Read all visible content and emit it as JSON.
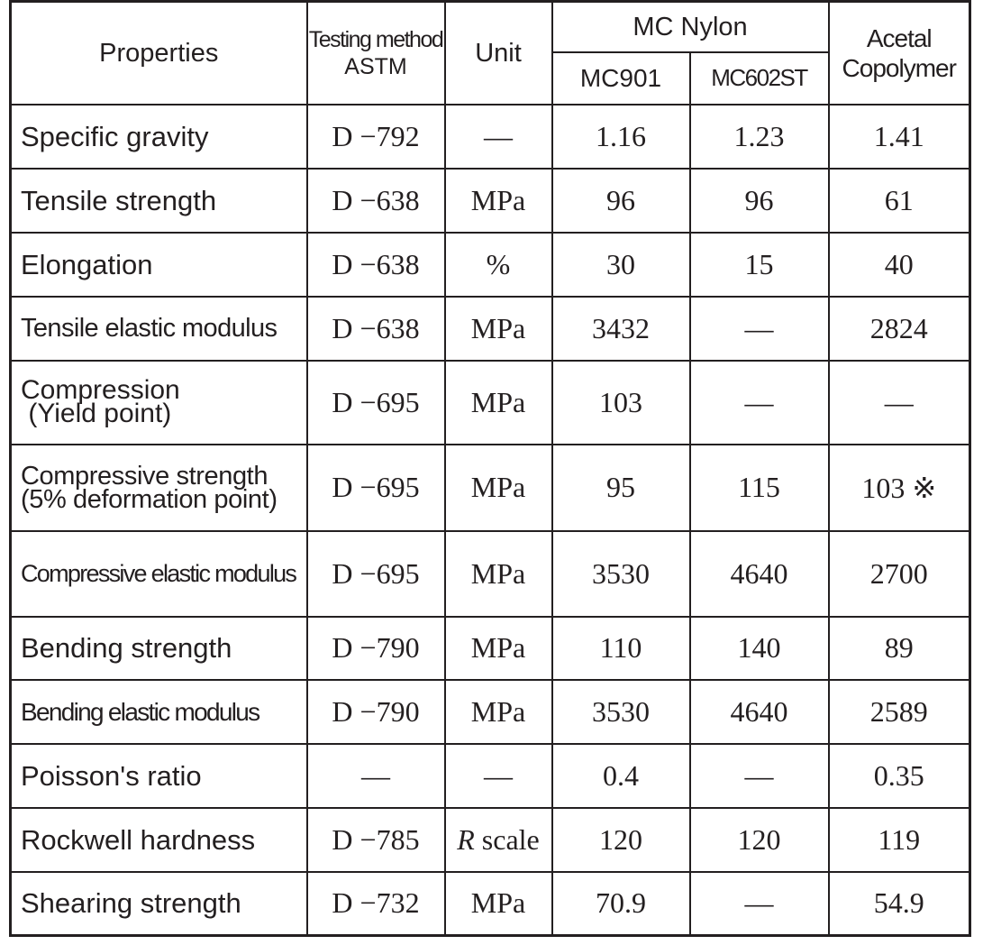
{
  "header": {
    "properties": "Properties",
    "testing_method_line1": "Testing method",
    "testing_method_line2": "ASTM",
    "unit": "Unit",
    "mc_nylon": "MC Nylon",
    "mc901": "MC901",
    "mc602st": "MC602ST",
    "acetal_line1": "Acetal",
    "acetal_line2": "Copolymer"
  },
  "rows": [
    {
      "prop": "Specific gravity",
      "method": "D −792",
      "unit": "—",
      "mc901": "1.16",
      "mc602st": "1.23",
      "acetal": "1.41"
    },
    {
      "prop": "Tensile strength",
      "method": "D −638",
      "unit": "MPa",
      "mc901": "96",
      "mc602st": "96",
      "acetal": "61"
    },
    {
      "prop": "Elongation",
      "method": "D −638",
      "unit": "%",
      "mc901": "30",
      "mc602st": "15",
      "acetal": "40"
    },
    {
      "prop": "Tensile elastic modulus",
      "method": "D −638",
      "unit": "MPa",
      "mc901": "3432",
      "mc602st": "—",
      "acetal": "2824"
    },
    {
      "prop_line1": "Compression",
      "prop_line2": " (Yield point)",
      "method": "D −695",
      "unit": "MPa",
      "mc901": "103",
      "mc602st": "—",
      "acetal": "—"
    },
    {
      "prop_line1": "Compressive strength",
      "prop_line2": "(5% deformation point)",
      "method": "D −695",
      "unit": "MPa",
      "mc901": "95",
      "mc602st": "115",
      "acetal": "103 ※"
    },
    {
      "prop": "Compressive elastic modulus",
      "method": "D −695",
      "unit": "MPa",
      "mc901": "3530",
      "mc602st": "4640",
      "acetal": "2700"
    },
    {
      "prop": "Bending strength",
      "method": "D −790",
      "unit": "MPa",
      "mc901": "110",
      "mc602st": "140",
      "acetal": "89"
    },
    {
      "prop": "Bending elastic modulus",
      "method": "D −790",
      "unit": "MPa",
      "mc901": "3530",
      "mc602st": "4640",
      "acetal": "2589"
    },
    {
      "prop": "Poisson's ratio",
      "method": "—",
      "unit": "—",
      "mc901": "0.4",
      "mc602st": "—",
      "acetal": "0.35"
    },
    {
      "prop": "Rockwell hardness",
      "method": "D −785",
      "unit_italic": "R",
      "unit_rest": " scale",
      "mc901": "120",
      "mc602st": "120",
      "acetal": "119"
    },
    {
      "prop": "Shearing strength",
      "method": "D −732",
      "unit": "MPa",
      "mc901": "70.9",
      "mc602st": "—",
      "acetal": "54.9"
    }
  ]
}
